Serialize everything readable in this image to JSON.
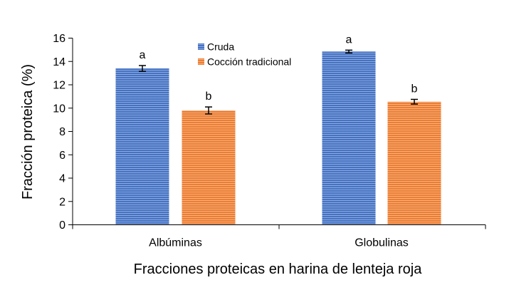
{
  "chart_data": {
    "type": "bar",
    "title": "",
    "xlabel": "Fracciones proteicas en harina de lenteja roja",
    "ylabel": "Fracción proteica (%)",
    "ylim": [
      0,
      16
    ],
    "yticks": [
      0,
      2,
      4,
      6,
      8,
      10,
      12,
      14,
      16
    ],
    "ytick_labels": [
      "0",
      "2",
      "4",
      "6",
      "8",
      "10",
      "12",
      "14",
      "16"
    ],
    "grid": false,
    "legend_position": "top-center",
    "categories": [
      "Albúminas",
      "Globulinas"
    ],
    "series": [
      {
        "name": "Cruda",
        "color": "#4472C4",
        "values": [
          13.4,
          14.85
        ],
        "errors": [
          0.25,
          0.12
        ],
        "labels": [
          "a",
          "a"
        ]
      },
      {
        "name": "Cocción tradicional",
        "color": "#ED7D31",
        "values": [
          9.8,
          10.55
        ],
        "errors": [
          0.3,
          0.2
        ],
        "labels": [
          "b",
          "b"
        ]
      }
    ]
  }
}
